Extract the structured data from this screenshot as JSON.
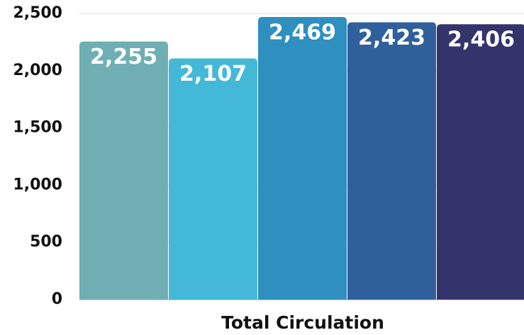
{
  "chart_data": {
    "type": "bar",
    "x_label": "Total Circulation",
    "categories": [
      null,
      null,
      null,
      null,
      null
    ],
    "values": [
      2255,
      2107,
      2469,
      2423,
      2406
    ],
    "value_labels": [
      "2,255",
      "2,107",
      "2,469",
      "2,423",
      "2,406"
    ],
    "colors": [
      "#6fafb3",
      "#43b9d7",
      "#2f8fbf",
      "#30609c",
      "#33346b"
    ],
    "ylim": [
      0,
      2500
    ],
    "yticks": [
      0,
      500,
      {
        "value": 1000,
        "label": "1,000"
      },
      {
        "value": 1500,
        "label": "1,500"
      },
      {
        "value": 2000,
        "label": "2,000"
      },
      {
        "value": 2500,
        "label": "2,500"
      }
    ],
    "grid": true
  }
}
